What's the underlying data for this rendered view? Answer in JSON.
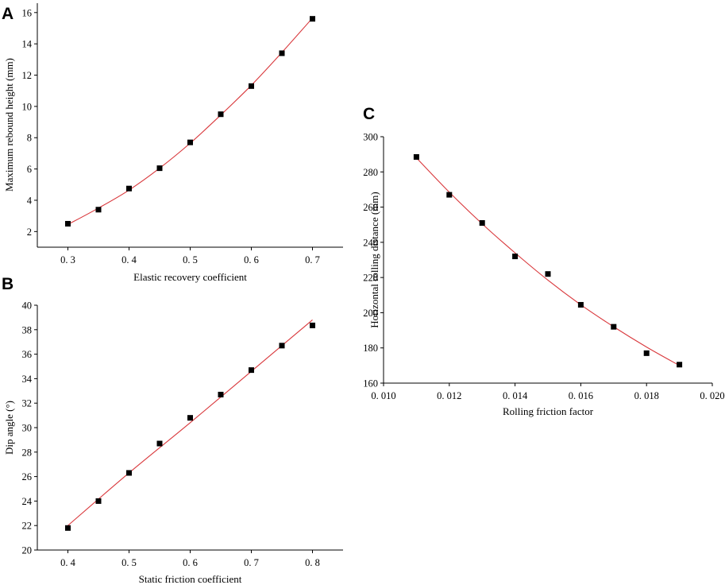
{
  "chart_data": [
    {
      "panel": "A",
      "type": "scatter",
      "xlabel": "Elastic recovery coefficient",
      "ylabel": "Maximum rebound height  (mm)",
      "xlim": [
        0.25,
        0.75
      ],
      "ylim": [
        1,
        16.6
      ],
      "xticks": [
        "0. 3",
        "0. 4",
        "0. 5",
        "0. 6",
        "0. 7"
      ],
      "xtick_values": [
        0.3,
        0.4,
        0.5,
        0.6,
        0.7
      ],
      "yticks": [
        "2",
        "4",
        "6",
        "8",
        "10",
        "12",
        "14",
        "16"
      ],
      "ytick_values": [
        2,
        4,
        6,
        8,
        10,
        12,
        14,
        16
      ],
      "x": [
        0.3,
        0.35,
        0.4,
        0.45,
        0.5,
        0.55,
        0.6,
        0.65,
        0.7
      ],
      "y": [
        2.5,
        3.4,
        4.75,
        6.05,
        7.7,
        9.5,
        11.3,
        13.4,
        15.6
      ],
      "fit": [
        [
          0.3,
          2.45
        ],
        [
          0.35,
          3.5
        ],
        [
          0.4,
          4.65
        ],
        [
          0.45,
          6.05
        ],
        [
          0.5,
          7.65
        ],
        [
          0.55,
          9.45
        ],
        [
          0.6,
          11.35
        ],
        [
          0.65,
          13.45
        ],
        [
          0.7,
          15.65
        ]
      ],
      "grid": false,
      "marker_color": "#000000",
      "line_color": "#d9383c"
    },
    {
      "panel": "B",
      "type": "scatter",
      "xlabel": "Static friction coefficient",
      "ylabel": "Dip angle (°)",
      "xlim": [
        0.35,
        0.85
      ],
      "ylim": [
        20,
        40
      ],
      "xticks": [
        "0. 4",
        "0. 5",
        "0. 6",
        "0. 7",
        "0. 8"
      ],
      "xtick_values": [
        0.4,
        0.5,
        0.6,
        0.7,
        0.8
      ],
      "yticks": [
        "20",
        "22",
        "24",
        "26",
        "28",
        "30",
        "32",
        "34",
        "36",
        "38",
        "40"
      ],
      "ytick_values": [
        20,
        22,
        24,
        26,
        28,
        30,
        32,
        34,
        36,
        38,
        40
      ],
      "x": [
        0.4,
        0.45,
        0.5,
        0.55,
        0.6,
        0.65,
        0.7,
        0.75,
        0.8
      ],
      "y": [
        21.8,
        24.0,
        26.3,
        28.7,
        30.8,
        32.7,
        34.7,
        36.7,
        38.35
      ],
      "fit": [
        [
          0.4,
          22.0
        ],
        [
          0.5,
          26.3
        ],
        [
          0.6,
          30.4
        ],
        [
          0.7,
          34.6
        ],
        [
          0.8,
          38.8
        ]
      ],
      "grid": false,
      "marker_color": "#000000",
      "line_color": "#d9383c"
    },
    {
      "panel": "C",
      "type": "scatter",
      "xlabel": "Rolling friction factor",
      "ylabel": "Horizontal rolling distance (mm)",
      "xlim": [
        0.01,
        0.02
      ],
      "ylim": [
        160,
        300
      ],
      "xticks": [
        "0. 010",
        "0. 012",
        "0. 014",
        "0. 016",
        "0. 018",
        "0. 020"
      ],
      "xtick_values": [
        0.01,
        0.012,
        0.014,
        0.016,
        0.018,
        0.02
      ],
      "yticks": [
        "160",
        "180",
        "200",
        "220",
        "240",
        "260",
        "280",
        "300"
      ],
      "ytick_values": [
        160,
        180,
        200,
        220,
        240,
        260,
        280,
        300
      ],
      "x": [
        0.011,
        0.012,
        0.013,
        0.014,
        0.015,
        0.016,
        0.017,
        0.018,
        0.019
      ],
      "y": [
        288.5,
        267,
        251,
        232,
        222,
        204.5,
        192,
        177,
        170.5
      ],
      "fit": [
        [
          0.011,
          288
        ],
        [
          0.012,
          268.5
        ],
        [
          0.013,
          250.5
        ],
        [
          0.014,
          234
        ],
        [
          0.015,
          218.5
        ],
        [
          0.016,
          204.5
        ],
        [
          0.017,
          192
        ],
        [
          0.018,
          180.5
        ],
        [
          0.019,
          170
        ]
      ],
      "grid": false,
      "marker_color": "#000000",
      "line_color": "#d9383c"
    }
  ]
}
